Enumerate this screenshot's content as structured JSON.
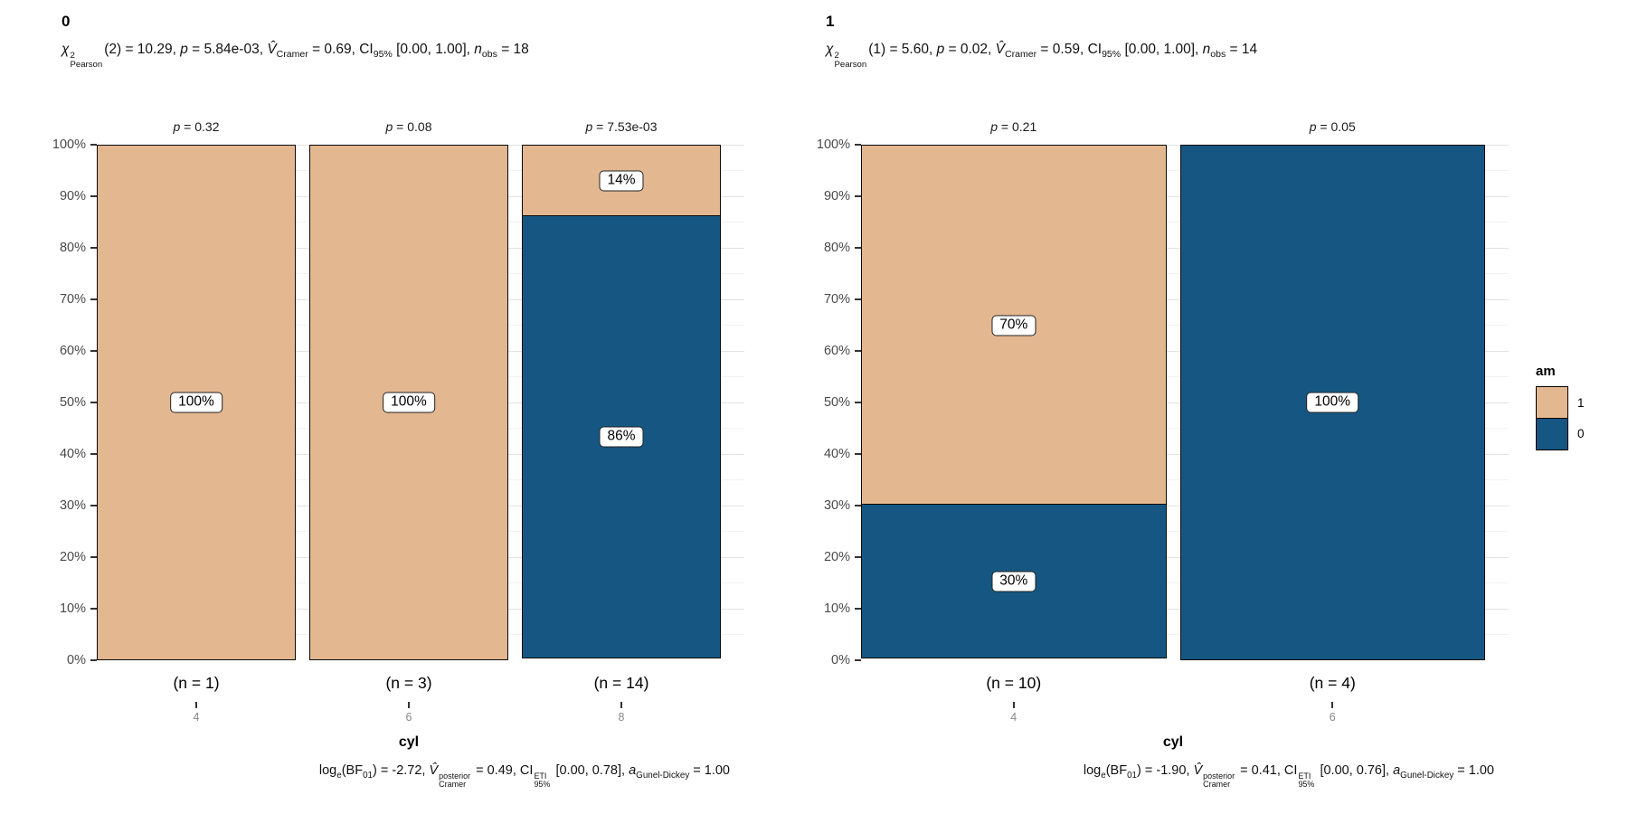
{
  "figure": {
    "background": "#ffffff"
  },
  "colors": {
    "am_1": "#E3B790",
    "am_0": "#155782",
    "bar_border": "#000000",
    "tick": "#333333",
    "grid_major": "#E2E2E2",
    "grid_minor": "#F2F2F2"
  },
  "legend": {
    "title": "am",
    "items": [
      {
        "label": "1",
        "color": "#E3B790"
      },
      {
        "label": "0",
        "color": "#155782"
      }
    ]
  },
  "chart_data": [
    {
      "type": "bar",
      "stacked": true,
      "percent": true,
      "facet_title": "0",
      "subtitle_text": "χ²Pearson(2) = 10.29, p = 5.84e-03, V̂Cramer = 0.69, CI95% [0.00, 1.00], nobs = 18",
      "subtitle_segments": [
        {
          "t": "χ",
          "s": "i"
        },
        {
          "stack": [
            "2",
            "Pearson"
          ]
        },
        {
          "t": "(2) = 10.29, "
        },
        {
          "t": "p",
          "s": "i"
        },
        {
          "t": " = 5.84e-03, "
        },
        {
          "t": "V̂",
          "s": "i"
        },
        {
          "t": "Cramer",
          "s": "sub"
        },
        {
          "t": " = 0.69, CI"
        },
        {
          "t": "95%",
          "s": "sub"
        },
        {
          "t": " [0.00, 1.00], "
        },
        {
          "t": "n",
          "s": "i"
        },
        {
          "t": "obs",
          "s": "sub"
        },
        {
          "t": " = 18"
        }
      ],
      "xlabel": "cyl",
      "ylabel": "",
      "ylim": [
        0,
        100
      ],
      "y_ticks": [
        "0%",
        "10%",
        "20%",
        "30%",
        "40%",
        "50%",
        "60%",
        "70%",
        "80%",
        "90%",
        "100%"
      ],
      "bars": [
        {
          "category": "4",
          "n": 1,
          "n_label": "(n = 1)",
          "p_value": "0.32",
          "p_segments": [
            {
              "t": "p",
              "s": "i"
            },
            {
              "t": " = 0.32"
            }
          ],
          "segments": [
            {
              "name": "am = 1",
              "value": 100,
              "label": "100%",
              "color": "#E3B790"
            }
          ]
        },
        {
          "category": "6",
          "n": 3,
          "n_label": "(n = 3)",
          "p_value": "0.08",
          "p_segments": [
            {
              "t": "p",
              "s": "i"
            },
            {
              "t": " = 0.08"
            }
          ],
          "segments": [
            {
              "name": "am = 1",
              "value": 100,
              "label": "100%",
              "color": "#E3B790"
            }
          ]
        },
        {
          "category": "8",
          "n": 14,
          "n_label": "(n = 14)",
          "p_value": "7.53e-03",
          "p_segments": [
            {
              "t": "p",
              "s": "i"
            },
            {
              "t": " = 7.53e-03"
            }
          ],
          "segments": [
            {
              "name": "am = 1",
              "value": 14,
              "label": "14%",
              "color": "#E3B790"
            },
            {
              "name": "am = 0",
              "value": 86,
              "label": "86%",
              "color": "#155782"
            }
          ]
        }
      ],
      "caption_text": "loge(BF01) = -2.72, V̂posterior Cramer = 0.49, CI ETI 95% [0.00, 0.78], aGunel-Dickey = 1.00",
      "caption_segments": [
        {
          "t": "log"
        },
        {
          "t": "e",
          "s": "sub"
        },
        {
          "t": "(BF"
        },
        {
          "t": "01",
          "s": "sub"
        },
        {
          "t": ") = -2.72, "
        },
        {
          "t": "V̂",
          "s": "i"
        },
        {
          "stack": [
            "posterior",
            "Cramer"
          ]
        },
        {
          "t": " = 0.49, CI"
        },
        {
          "stack": [
            "ETI",
            "95%"
          ]
        },
        {
          "t": " [0.00, 0.78], "
        },
        {
          "t": "a",
          "s": "i"
        },
        {
          "t": "Gunel-Dickey",
          "s": "sub"
        },
        {
          "t": " = 1.00"
        }
      ]
    },
    {
      "type": "bar",
      "stacked": true,
      "percent": true,
      "facet_title": "1",
      "subtitle_text": "χ²Pearson(1) = 5.60, p = 0.02, V̂Cramer = 0.59, CI95% [0.00, 1.00], nobs = 14",
      "subtitle_segments": [
        {
          "t": "χ",
          "s": "i"
        },
        {
          "stack": [
            "2",
            "Pearson"
          ]
        },
        {
          "t": "(1) = 5.60, "
        },
        {
          "t": "p",
          "s": "i"
        },
        {
          "t": " = 0.02, "
        },
        {
          "t": "V̂",
          "s": "i"
        },
        {
          "t": "Cramer",
          "s": "sub"
        },
        {
          "t": " = 0.59, CI"
        },
        {
          "t": "95%",
          "s": "sub"
        },
        {
          "t": " [0.00, 1.00], "
        },
        {
          "t": "n",
          "s": "i"
        },
        {
          "t": "obs",
          "s": "sub"
        },
        {
          "t": " = 14"
        }
      ],
      "xlabel": "cyl",
      "ylabel": "",
      "ylim": [
        0,
        100
      ],
      "y_ticks": [
        "0%",
        "10%",
        "20%",
        "30%",
        "40%",
        "50%",
        "60%",
        "70%",
        "80%",
        "90%",
        "100%"
      ],
      "bars": [
        {
          "category": "4",
          "n": 10,
          "n_label": "(n = 10)",
          "p_value": "0.21",
          "p_segments": [
            {
              "t": "p",
              "s": "i"
            },
            {
              "t": " = 0.21"
            }
          ],
          "segments": [
            {
              "name": "am = 1",
              "value": 70,
              "label": "70%",
              "color": "#E3B790"
            },
            {
              "name": "am = 0",
              "value": 30,
              "label": "30%",
              "color": "#155782"
            }
          ]
        },
        {
          "category": "6",
          "n": 4,
          "n_label": "(n = 4)",
          "p_value": "0.05",
          "p_segments": [
            {
              "t": "p",
              "s": "i"
            },
            {
              "t": " = 0.05"
            }
          ],
          "segments": [
            {
              "name": "am = 0",
              "value": 100,
              "label": "100%",
              "color": "#155782"
            }
          ]
        }
      ],
      "caption_text": "loge(BF01) = -1.90, V̂posterior Cramer = 0.41, CI ETI 95% [0.00, 0.76], aGunel-Dickey = 1.00",
      "caption_segments": [
        {
          "t": "log"
        },
        {
          "t": "e",
          "s": "sub"
        },
        {
          "t": "(BF"
        },
        {
          "t": "01",
          "s": "sub"
        },
        {
          "t": ") = -1.90, "
        },
        {
          "t": "V̂",
          "s": "i"
        },
        {
          "stack": [
            "posterior",
            "Cramer"
          ]
        },
        {
          "t": " = 0.41, CI"
        },
        {
          "stack": [
            "ETI",
            "95%"
          ]
        },
        {
          "t": " [0.00, 0.76], "
        },
        {
          "t": "a",
          "s": "i"
        },
        {
          "t": "Gunel-Dickey",
          "s": "sub"
        },
        {
          "t": " = 1.00"
        }
      ]
    }
  ]
}
